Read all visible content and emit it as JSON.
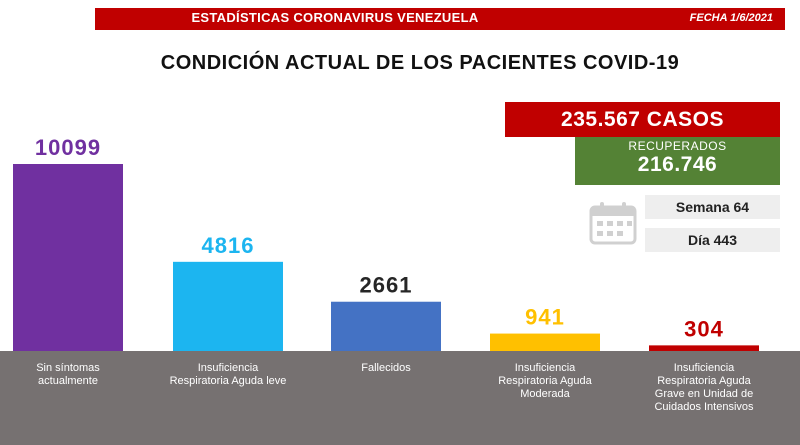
{
  "header": {
    "banner_title": "ESTADÍSTICAS CORONAVIRUS VENEZUELA",
    "date": "FECHA 1/6/2021",
    "main_title": "CONDICIÓN ACTUAL DE LOS PACIENTES COVID-19"
  },
  "summary": {
    "cases": "235.567 CASOS",
    "recovered_label": "RECUPERADOS",
    "recovered_value": "216.746",
    "week": "Semana 64",
    "day": "Día 443"
  },
  "colors": {
    "banner": "#c00000",
    "recovered": "#548235",
    "category_band": "#767171"
  },
  "chart_data": {
    "type": "bar",
    "categories": [
      [
        "Sin síntomas",
        "actualmente"
      ],
      [
        "Insuficiencia",
        "Respiratoria Aguda leve"
      ],
      [
        "Fallecidos"
      ],
      [
        "Insuficiencia",
        "Respiratoria Aguda",
        "Moderada"
      ],
      [
        "Insuficiencia",
        "Respiratoria Aguda",
        "Grave en Unidad de",
        "Cuidados Intensivos"
      ]
    ],
    "values": [
      10099,
      4816,
      2661,
      941,
      304
    ],
    "bar_colors": [
      "#7030a0",
      "#1cb5f0",
      "#4472c4",
      "#ffc000",
      "#c00000"
    ],
    "label_colors": [
      "#7030a0",
      "#1cb5f0",
      "#262626",
      "#ffc000",
      "#c00000"
    ]
  }
}
